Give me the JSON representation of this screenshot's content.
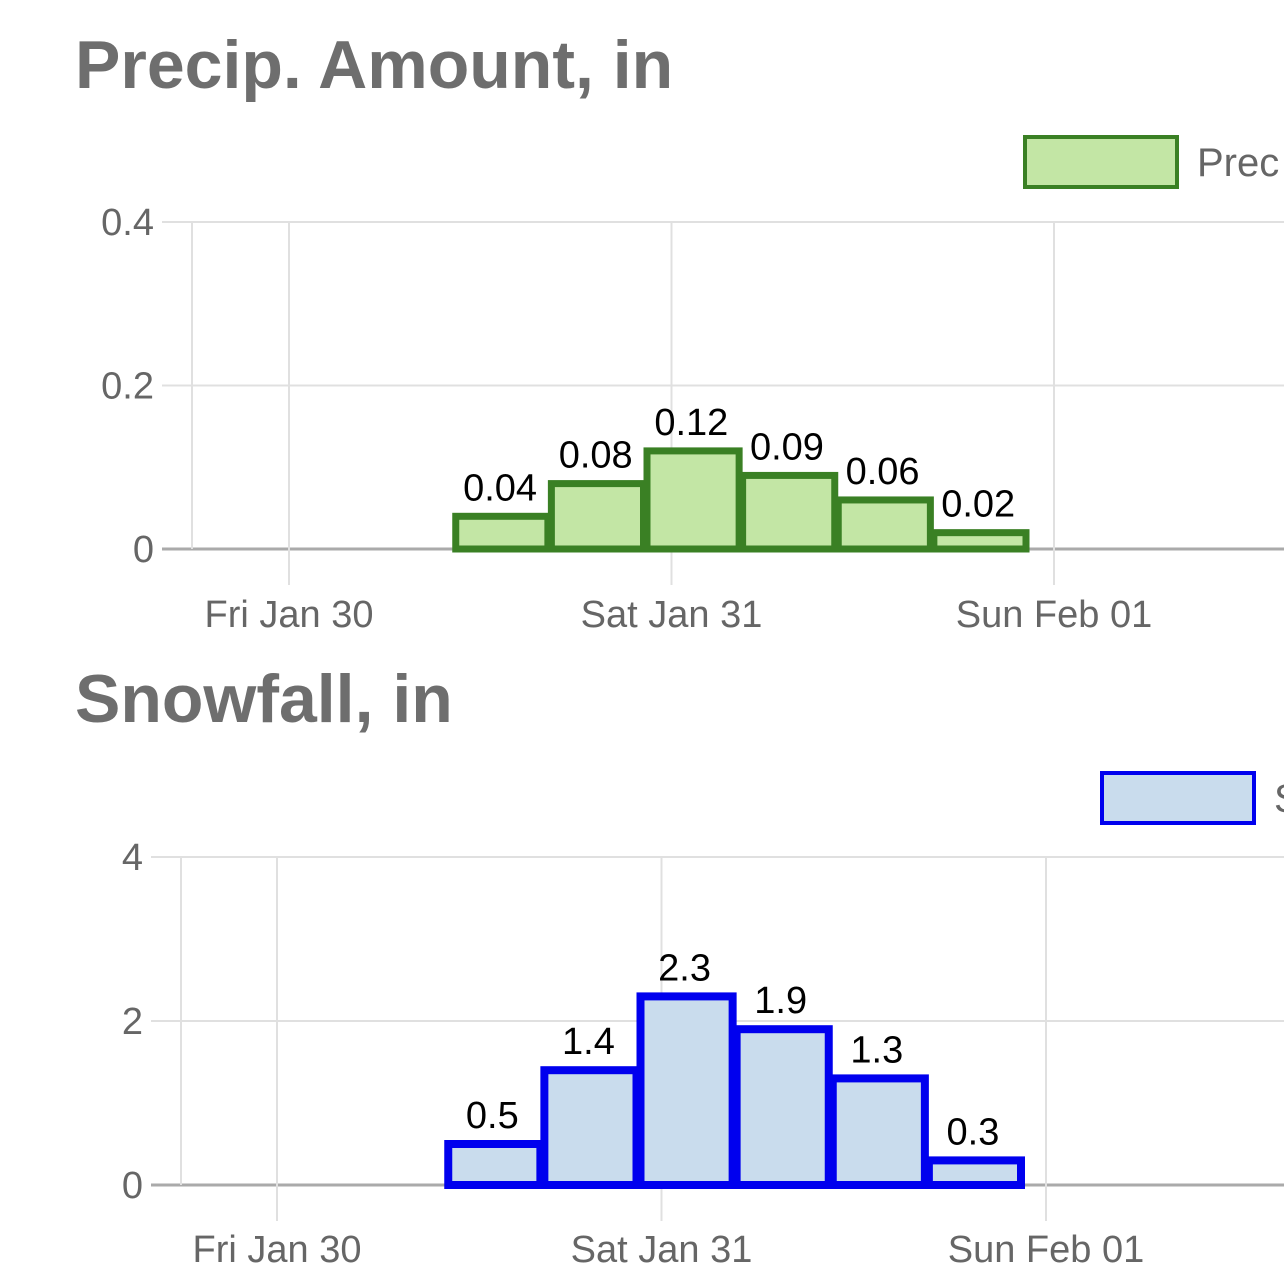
{
  "chart_data": [
    {
      "type": "bar",
      "title": "Precip. Amount, in",
      "legend": {
        "label": "Prec",
        "position": "top-right"
      },
      "x_ticks": [
        "Fri Jan 30",
        "Sat Jan 31",
        "Sun Feb 01"
      ],
      "y_ticks": [
        "0",
        "0.2",
        "0.4"
      ],
      "ylim": [
        0,
        0.4
      ],
      "grid": true,
      "bar_period_hours": 6,
      "bars": [
        {
          "start": "Fri Jan 30 12:00",
          "value": 0.04,
          "label": "0.04"
        },
        {
          "start": "Fri Jan 30 18:00",
          "value": 0.08,
          "label": "0.08"
        },
        {
          "start": "Sat Jan 31 00:00",
          "value": 0.12,
          "label": "0.12"
        },
        {
          "start": "Sat Jan 31 06:00",
          "value": 0.09,
          "label": "0.09"
        },
        {
          "start": "Sat Jan 31 12:00",
          "value": 0.06,
          "label": "0.06"
        },
        {
          "start": "Sat Jan 31 18:00",
          "value": 0.02,
          "label": "0.02"
        }
      ],
      "colors": {
        "fill": "#c3e6a5",
        "stroke": "#3a8024"
      }
    },
    {
      "type": "bar",
      "title": "Snowfall, in",
      "legend": {
        "label": "S",
        "position": "top-right"
      },
      "x_ticks": [
        "Fri Jan 30",
        "Sat Jan 31",
        "Sun Feb 01"
      ],
      "y_ticks": [
        "0",
        "2",
        "4"
      ],
      "ylim": [
        0,
        4
      ],
      "grid": true,
      "bar_period_hours": 6,
      "bars": [
        {
          "start": "Fri Jan 30 12:00",
          "value": 0.5,
          "label": "0.5"
        },
        {
          "start": "Fri Jan 30 18:00",
          "value": 1.4,
          "label": "1.4"
        },
        {
          "start": "Sat Jan 31 00:00",
          "value": 2.3,
          "label": "2.3"
        },
        {
          "start": "Sat Jan 31 06:00",
          "value": 1.9,
          "label": "1.9"
        },
        {
          "start": "Sat Jan 31 12:00",
          "value": 1.3,
          "label": "1.3"
        },
        {
          "start": "Sat Jan 31 18:00",
          "value": 0.3,
          "label": "0.3"
        }
      ],
      "colors": {
        "fill": "#c9dced",
        "stroke": "#0000ee"
      }
    }
  ]
}
